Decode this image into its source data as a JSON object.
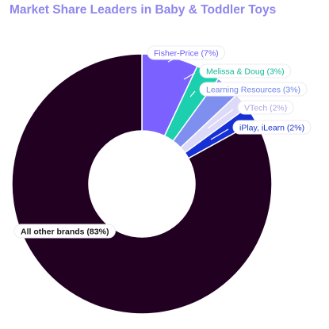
{
  "chart_data": {
    "type": "pie",
    "title": "Market Share Leaders in Baby & Toddler Toys",
    "donut": true,
    "unit": "%",
    "slices": [
      {
        "label": "Fisher-Price (7%)",
        "value": 7,
        "color": "#7b61ff",
        "label_color": "#6a5af9"
      },
      {
        "label": "Melissa & Doug (3%)",
        "value": 3,
        "color": "#1ccfaf",
        "label_color": "#17b89b"
      },
      {
        "label": "Learning Resources (3%)",
        "value": 3,
        "color": "#7e8ff0",
        "label_color": "#6f83ea"
      },
      {
        "label": "VTech (2%)",
        "value": 2,
        "color": "#dcdaf8",
        "label_color": "#a9a6df"
      },
      {
        "label": "iPlay, iLearn (2%)",
        "value": 2,
        "color": "#1530d4",
        "label_color": "#1a33c8"
      },
      {
        "label": "All other brands (83%)",
        "value": 83,
        "color": "#220021",
        "label_color": "#1b1b1b"
      }
    ]
  }
}
